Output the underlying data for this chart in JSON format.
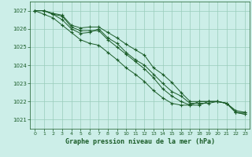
{
  "xlabel": "Graphe pression niveau de la mer (hPa)",
  "ylim": [
    1020.5,
    1027.5
  ],
  "xlim": [
    -0.5,
    23.5
  ],
  "yticks": [
    1021,
    1022,
    1023,
    1024,
    1025,
    1026,
    1027
  ],
  "xticks": [
    0,
    1,
    2,
    3,
    4,
    5,
    6,
    7,
    8,
    9,
    10,
    11,
    12,
    13,
    14,
    15,
    16,
    17,
    18,
    19,
    20,
    21,
    22,
    23
  ],
  "bg_color": "#cceee8",
  "line_color": "#1a5c28",
  "grid_color": "#99ccbb",
  "series": [
    [
      1027.0,
      1027.0,
      1026.85,
      1026.75,
      1026.2,
      1026.05,
      1026.1,
      1026.1,
      1025.8,
      1025.5,
      1025.15,
      1024.85,
      1024.55,
      1023.85,
      1023.5,
      1023.05,
      1022.5,
      1022.0,
      1022.0,
      1022.0,
      1022.0,
      1021.9,
      1021.5,
      1021.4
    ],
    [
      1027.0,
      1027.0,
      1026.8,
      1026.5,
      1026.0,
      1025.75,
      1025.8,
      1026.0,
      1025.5,
      1025.2,
      1024.7,
      1024.3,
      1024.0,
      1023.5,
      1023.0,
      1022.55,
      1022.3,
      1021.9,
      1021.9,
      1021.9,
      1022.0,
      1021.9,
      1021.4,
      1021.3
    ],
    [
      1027.0,
      1027.0,
      1026.8,
      1026.7,
      1026.1,
      1025.9,
      1025.9,
      1025.9,
      1025.4,
      1025.0,
      1024.6,
      1024.2,
      1023.8,
      1023.3,
      1022.7,
      1022.3,
      1022.0,
      1021.8,
      1021.8,
      1022.0,
      1022.0,
      1021.9,
      1021.4,
      1021.4
    ],
    [
      1027.0,
      1026.8,
      1026.6,
      1026.2,
      1025.8,
      1025.4,
      1025.2,
      1025.1,
      1024.7,
      1024.3,
      1023.85,
      1023.5,
      1023.1,
      1022.6,
      1022.2,
      1021.9,
      1021.8,
      1021.8,
      1022.0,
      1022.0,
      1022.0,
      1021.9,
      1021.4,
      1021.3
    ]
  ]
}
